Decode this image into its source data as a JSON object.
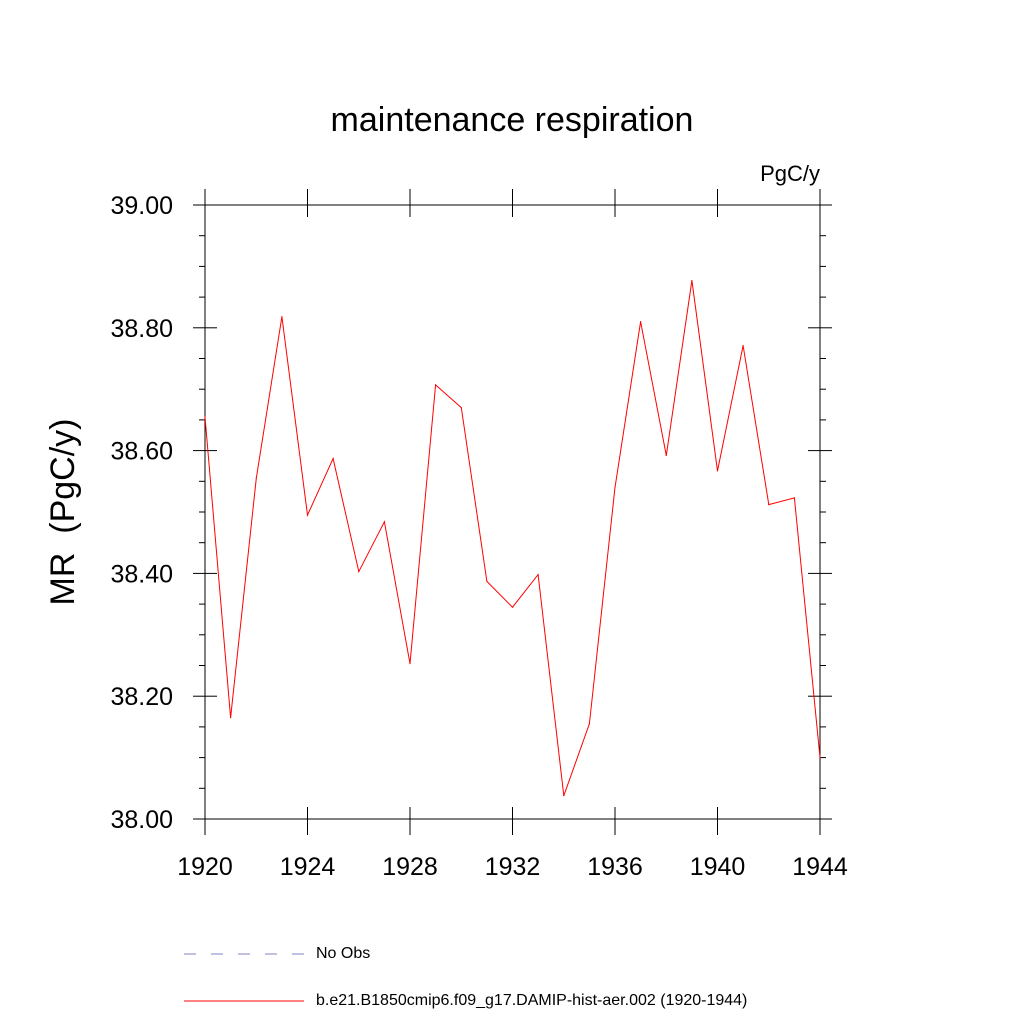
{
  "chart_data": {
    "type": "line",
    "title": "maintenance respiration",
    "units_label": "PgC/y",
    "ylabel": "MR  (PgC/y)",
    "xlabel": "",
    "xlim": [
      1920,
      1944
    ],
    "ylim": [
      38.0,
      39.0
    ],
    "x_ticks": [
      1920,
      1924,
      1928,
      1932,
      1936,
      1940,
      1944
    ],
    "y_ticks": [
      "38.00",
      "38.20",
      "38.40",
      "38.60",
      "38.80",
      "39.00"
    ],
    "grid": false,
    "legend_position": "bottom",
    "series": [
      {
        "name": "b.e21.B1850cmip6.f09_g17.DAMIP-hist-aer.002 (1920-1944)",
        "color": "#ff0000",
        "style": "solid",
        "x": [
          1920,
          1921,
          1922,
          1923,
          1924,
          1925,
          1926,
          1927,
          1928,
          1929,
          1930,
          1931,
          1932,
          1933,
          1934,
          1935,
          1936,
          1937,
          1938,
          1939,
          1940,
          1941,
          1942,
          1943,
          1944
        ],
        "values": [
          38.655,
          38.165,
          38.555,
          38.818,
          38.495,
          38.587,
          38.403,
          38.484,
          38.253,
          38.707,
          38.67,
          38.387,
          38.345,
          38.398,
          38.038,
          38.155,
          38.54,
          38.81,
          38.592,
          38.877,
          38.567,
          38.771,
          38.512,
          38.523,
          38.1
        ]
      }
    ],
    "legend": [
      {
        "label": "No Obs",
        "color": "#8080c0",
        "style": "dashed"
      },
      {
        "label": "b.e21.B1850cmip6.f09_g17.DAMIP-hist-aer.002 (1920-1944)",
        "color": "#ff0000",
        "style": "solid"
      }
    ]
  }
}
